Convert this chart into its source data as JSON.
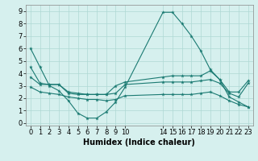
{
  "xlabel": "Humidex (Indice chaleur)",
  "ylabel": "",
  "xlim": [
    -0.5,
    23.5
  ],
  "ylim": [
    -0.2,
    9.5
  ],
  "xticks": [
    0,
    1,
    2,
    3,
    4,
    5,
    6,
    7,
    8,
    9,
    10,
    14,
    15,
    16,
    17,
    18,
    19,
    20,
    21,
    22,
    23
  ],
  "yticks": [
    0,
    1,
    2,
    3,
    4,
    5,
    6,
    7,
    8,
    9
  ],
  "background_color": "#d6f0ee",
  "grid_color": "#aed8d4",
  "line_color": "#1a7a72",
  "line1_x": [
    0,
    1,
    2,
    3,
    4,
    5,
    6,
    7,
    8,
    9,
    10,
    14,
    15,
    16,
    17,
    18,
    19,
    20,
    21,
    22,
    23
  ],
  "line1_y": [
    6.0,
    4.5,
    3.0,
    2.6,
    1.8,
    0.8,
    0.4,
    0.4,
    0.9,
    1.7,
    2.9,
    8.9,
    8.9,
    8.0,
    7.0,
    5.8,
    4.3,
    3.5,
    2.1,
    1.7,
    1.3
  ],
  "line2_x": [
    0,
    1,
    2,
    3,
    4,
    5,
    6,
    7,
    8,
    9,
    10,
    14,
    15,
    16,
    17,
    18,
    19,
    20,
    21,
    22,
    23
  ],
  "line2_y": [
    4.5,
    3.2,
    3.1,
    3.1,
    2.5,
    2.4,
    2.3,
    2.3,
    2.3,
    3.0,
    3.3,
    3.7,
    3.8,
    3.8,
    3.8,
    3.8,
    4.2,
    3.5,
    2.5,
    2.5,
    3.4
  ],
  "line3_x": [
    0,
    1,
    2,
    3,
    4,
    5,
    6,
    7,
    8,
    9,
    10,
    14,
    15,
    16,
    17,
    18,
    19,
    20,
    21,
    22,
    23
  ],
  "line3_y": [
    3.7,
    3.1,
    3.1,
    3.1,
    2.4,
    2.3,
    2.3,
    2.3,
    2.3,
    2.4,
    3.1,
    3.3,
    3.3,
    3.3,
    3.3,
    3.4,
    3.5,
    3.2,
    2.4,
    2.1,
    3.2
  ],
  "line4_x": [
    0,
    1,
    2,
    3,
    4,
    5,
    6,
    7,
    8,
    9,
    10,
    14,
    15,
    16,
    17,
    18,
    19,
    20,
    21,
    22,
    23
  ],
  "line4_y": [
    2.9,
    2.5,
    2.4,
    2.3,
    2.1,
    2.0,
    1.9,
    1.9,
    1.8,
    1.9,
    2.2,
    2.3,
    2.3,
    2.3,
    2.3,
    2.4,
    2.5,
    2.2,
    1.8,
    1.5,
    1.3
  ],
  "tick_fontsize": 6,
  "xlabel_fontsize": 7
}
